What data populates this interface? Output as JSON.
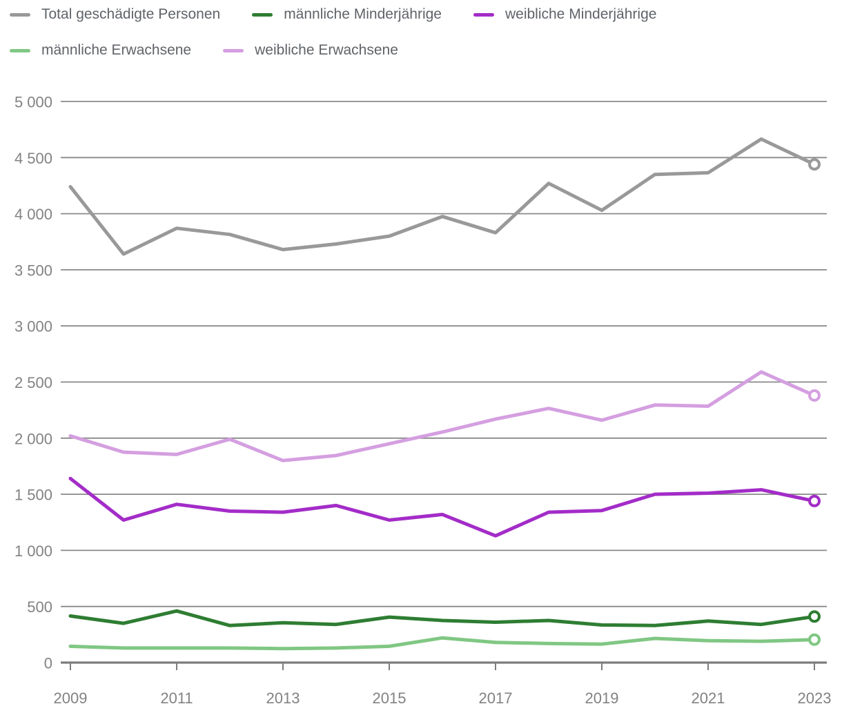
{
  "chart_data": {
    "type": "line",
    "title": "",
    "xlabel": "",
    "ylabel": "",
    "ylim": [
      0,
      5000
    ],
    "grid": true,
    "legend_position": "top",
    "end_marker": "open-circle",
    "x": [
      2009,
      2010,
      2011,
      2012,
      2013,
      2014,
      2015,
      2016,
      2017,
      2018,
      2019,
      2020,
      2021,
      2022,
      2023
    ],
    "x_ticks": [
      {
        "year": 2009,
        "label": "2009"
      },
      {
        "year": 2011,
        "label": "2011"
      },
      {
        "year": 2013,
        "label": "2013"
      },
      {
        "year": 2015,
        "label": "2015"
      },
      {
        "year": 2017,
        "label": "2017"
      },
      {
        "year": 2019,
        "label": "2019"
      },
      {
        "year": 2021,
        "label": "2021"
      },
      {
        "year": 2023,
        "label": "2023"
      }
    ],
    "y_ticks": [
      {
        "value": 0,
        "label": "0"
      },
      {
        "value": 500,
        "label": "500"
      },
      {
        "value": 1000,
        "label": "1 000"
      },
      {
        "value": 1500,
        "label": "1 500"
      },
      {
        "value": 2000,
        "label": "2 000"
      },
      {
        "value": 2500,
        "label": "2 500"
      },
      {
        "value": 3000,
        "label": "3 000"
      },
      {
        "value": 3500,
        "label": "3 500"
      },
      {
        "value": 4000,
        "label": "4 000"
      },
      {
        "value": 4500,
        "label": "4 500"
      },
      {
        "value": 5000,
        "label": "5 000"
      }
    ],
    "series": [
      {
        "id": "total",
        "name": "Total geschädigte Personen",
        "color": "#999999",
        "values": [
          4240,
          3640,
          3870,
          3815,
          3680,
          3730,
          3800,
          3975,
          3830,
          4270,
          4030,
          4350,
          4365,
          4665,
          4440
        ]
      },
      {
        "id": "male-minors",
        "name": "männliche Minderjährige",
        "color": "#2e7d32",
        "values": [
          415,
          350,
          460,
          330,
          355,
          340,
          405,
          375,
          360,
          375,
          335,
          330,
          370,
          340,
          410
        ]
      },
      {
        "id": "female-minors",
        "name": "weibliche Minderjährige",
        "color": "#a32cc8",
        "values": [
          1640,
          1270,
          1410,
          1350,
          1340,
          1400,
          1270,
          1320,
          1130,
          1340,
          1355,
          1500,
          1510,
          1540,
          1440
        ]
      },
      {
        "id": "male-adults",
        "name": "männliche Erwachsene",
        "color": "#80c783",
        "values": [
          145,
          130,
          130,
          130,
          125,
          130,
          145,
          220,
          180,
          170,
          165,
          215,
          195,
          190,
          205
        ]
      },
      {
        "id": "female-adults",
        "name": "weibliche Erwachsene",
        "color": "#d49fe0",
        "values": [
          2020,
          1875,
          1855,
          1990,
          1800,
          1845,
          1950,
          2055,
          2170,
          2265,
          2160,
          2295,
          2285,
          2590,
          2380
        ]
      }
    ]
  }
}
